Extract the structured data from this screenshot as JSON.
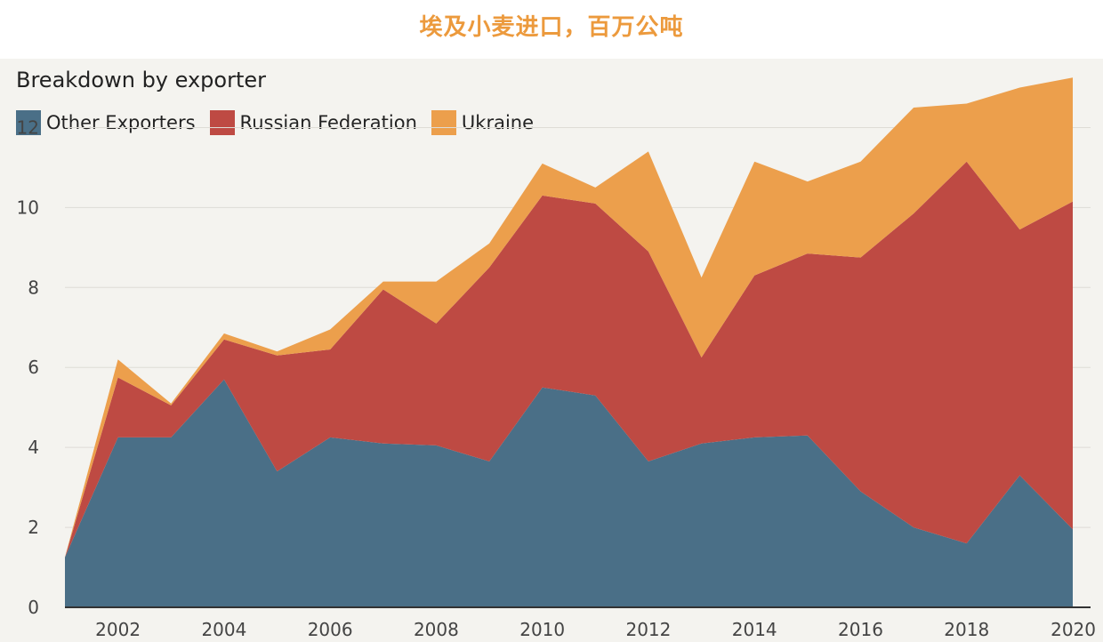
{
  "page": {
    "title": "埃及小麦进口，百万公吨"
  },
  "chart_data": {
    "type": "area",
    "stacked": true,
    "subtitle": "Breakdown by exporter",
    "x": [
      2001,
      2002,
      2003,
      2004,
      2005,
      2006,
      2007,
      2008,
      2009,
      2010,
      2011,
      2012,
      2013,
      2014,
      2015,
      2016,
      2017,
      2018,
      2019,
      2020
    ],
    "x_ticks": [
      2002,
      2004,
      2006,
      2008,
      2010,
      2012,
      2014,
      2016,
      2018,
      2020
    ],
    "y_ticks": [
      0,
      2,
      4,
      6,
      8,
      10,
      12
    ],
    "ylim": [
      0,
      13.5
    ],
    "xlim": [
      2001,
      2020
    ],
    "grid": true,
    "legend_position": "top-left",
    "series": [
      {
        "name": "Other Exporters",
        "color": "#4A6F87",
        "values": [
          1.25,
          4.25,
          4.25,
          5.7,
          3.4,
          4.25,
          4.1,
          4.05,
          3.65,
          5.5,
          5.3,
          3.65,
          4.1,
          4.25,
          4.3,
          2.9,
          2.0,
          1.6,
          3.3,
          1.95
        ]
      },
      {
        "name": "Russian Federation",
        "color": "#BE4A43",
        "values": [
          0.0,
          1.5,
          0.8,
          1.0,
          2.9,
          2.2,
          3.85,
          3.05,
          4.85,
          4.8,
          4.8,
          5.25,
          2.15,
          4.05,
          4.55,
          5.85,
          7.85,
          9.55,
          6.15,
          8.2
        ]
      },
      {
        "name": "Ukraine",
        "color": "#EC9F4C",
        "values": [
          0.0,
          0.45,
          0.05,
          0.15,
          0.1,
          0.5,
          0.2,
          1.05,
          0.6,
          0.8,
          0.4,
          2.5,
          2.0,
          2.85,
          1.8,
          2.4,
          2.65,
          1.45,
          3.55,
          3.1
        ]
      }
    ]
  }
}
